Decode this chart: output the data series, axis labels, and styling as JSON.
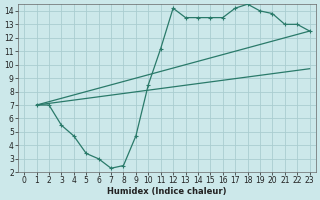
{
  "xlabel": "Humidex (Indice chaleur)",
  "xlim": [
    -0.5,
    23.5
  ],
  "ylim": [
    2,
    14.5
  ],
  "xticks": [
    0,
    1,
    2,
    3,
    4,
    5,
    6,
    7,
    8,
    9,
    10,
    11,
    12,
    13,
    14,
    15,
    16,
    17,
    18,
    19,
    20,
    21,
    22,
    23
  ],
  "yticks": [
    2,
    3,
    4,
    5,
    6,
    7,
    8,
    9,
    10,
    11,
    12,
    13,
    14
  ],
  "bg_color": "#cce8ea",
  "grid_color": "#aacdd0",
  "line_color": "#2a7a6a",
  "line1_x": [
    1,
    2,
    3,
    4,
    5,
    6,
    7,
    8,
    9,
    10,
    11,
    12,
    13,
    14,
    15,
    16,
    17,
    18,
    19,
    20,
    21,
    22,
    23
  ],
  "line1_y": [
    7,
    7,
    5.5,
    4.7,
    3.4,
    3.0,
    2.3,
    2.5,
    4.7,
    8.5,
    11.2,
    14.2,
    13.5,
    13.5,
    13.5,
    13.5,
    14.2,
    14.5,
    14.0,
    13.8,
    13.0,
    13.0,
    12.5
  ],
  "line2_x": [
    1,
    23
  ],
  "line2_y": [
    7.0,
    12.5
  ],
  "line3_x": [
    1,
    23
  ],
  "line3_y": [
    7.0,
    9.7
  ],
  "font_size_xlabel": 6,
  "font_size_ticks": 5.5
}
